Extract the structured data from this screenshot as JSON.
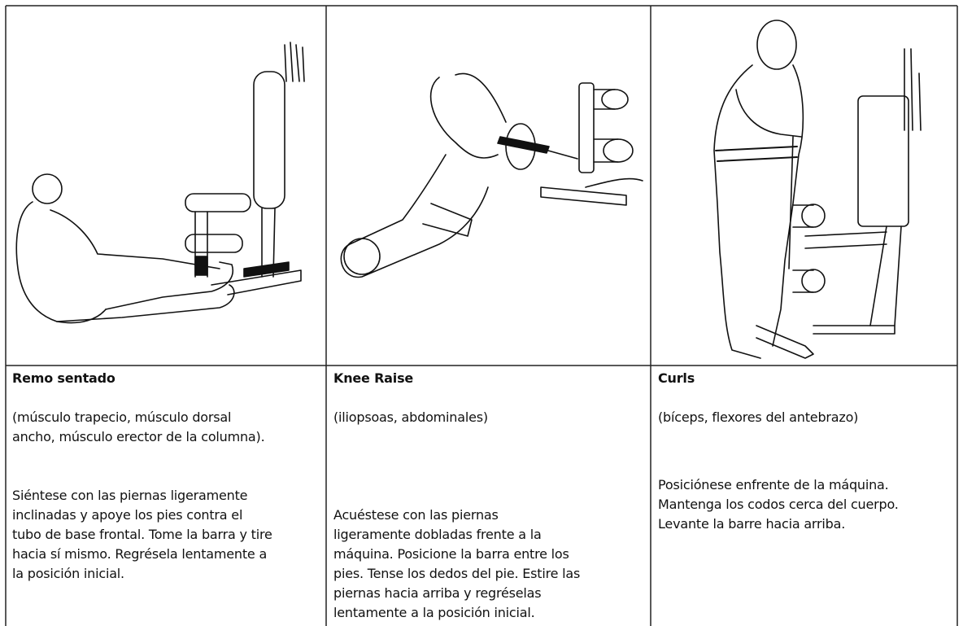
{
  "columns": [
    {
      "title": "Remo sentado",
      "muscles": [
        "(músculo trapecio, músculo dorsal",
        "ancho, músculo erector de la columna)."
      ],
      "description": [
        "Siéntese con las piernas ligeramente",
        "inclinadas y apoye los pies contra el",
        "tubo de base frontal. Tome la barra y tire",
        "hacia sí mismo. Regrésela lentamente a",
        "la posición inicial."
      ]
    },
    {
      "title": "Knee Raise",
      "muscles": [
        "(iliopsoas, abdominales)"
      ],
      "description": [
        "Acuéstese con las piernas",
        "ligeramente dobladas frente a la",
        "máquina. Posicione la barra entre los",
        "pies. Tense los dedos del pie. Estire las",
        "piernas hacia arriba y regréselas",
        "lentamente a la posición inicial."
      ]
    },
    {
      "title": "Curls",
      "muscles": [
        "(bíceps, flexores del antebrazo)"
      ],
      "description": [
        "Posiciónese enfrente de la máquina.",
        "Mantenga los codos cerca del cuerpo.",
        "Levante la barre hacia arriba."
      ]
    }
  ]
}
